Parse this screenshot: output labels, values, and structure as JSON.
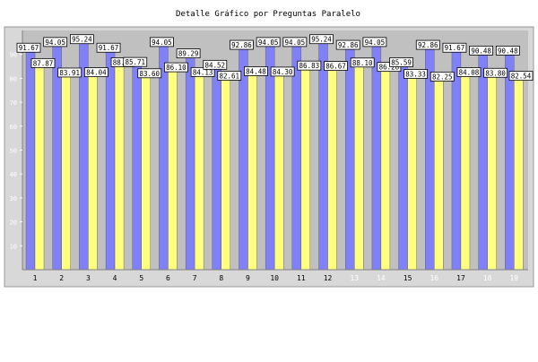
{
  "chart_data": {
    "type": "bar",
    "title": "Detalle Gráfico por Preguntas Paralelo",
    "xlabel": "",
    "ylabel": "",
    "ylim": [
      0,
      100
    ],
    "yticks": [
      10,
      20,
      30,
      40,
      50,
      60,
      70,
      80,
      90
    ],
    "grid": false,
    "legend": "none",
    "categories": [
      "1",
      "2",
      "3",
      "4",
      "5",
      "6",
      "7",
      "8",
      "9",
      "10",
      "11",
      "12",
      "13",
      "14",
      "15",
      "16",
      "17",
      "18",
      "19"
    ],
    "series": [
      {
        "color": "#8080f8",
        "values": [
          91.67,
          94.05,
          95.24,
          91.67,
          85.71,
          94.05,
          89.29,
          84.52,
          92.86,
          94.05,
          94.05,
          95.24,
          92.86,
          94.05,
          85.59,
          92.86,
          91.67,
          90.48,
          90.48
        ],
        "labels": [
          "91.67",
          "94.05",
          "95.24",
          "91.67",
          "85.71",
          "94.05",
          "89.29",
          "84.52",
          "92.86",
          "94.05",
          "94.05",
          "95.24",
          "92.86",
          "94.05",
          "85.59",
          "92.86",
          "91.67",
          "90.48",
          "90.48"
        ]
      },
      {
        "color": "#ffff80",
        "values": [
          87.87,
          83.91,
          84.04,
          88.23,
          83.6,
          86.1,
          84.13,
          82.61,
          84.48,
          84.3,
          86.83,
          86.67,
          88.1,
          86.28,
          83.33,
          82.25,
          84.08,
          83.8,
          82.54
        ],
        "labels": [
          "87.87",
          "83.91",
          "84.04",
          "88.23",
          "83.60",
          "86.10",
          "84.13",
          "82.61",
          "84.48",
          "84.30",
          "86.83",
          "86.67",
          "88.10",
          "86.28",
          "83.33",
          "82.25",
          "84.08",
          "83.80",
          "82.54"
        ]
      }
    ]
  },
  "colors": {
    "plot_background": "#c0c0c0",
    "frame_background": "#d8d8d8",
    "category_label_normal": "#000000",
    "category_label_highlight": "#ffffff"
  },
  "highlighted_categories": [
    "13",
    "14",
    "16",
    "18",
    "19"
  ]
}
